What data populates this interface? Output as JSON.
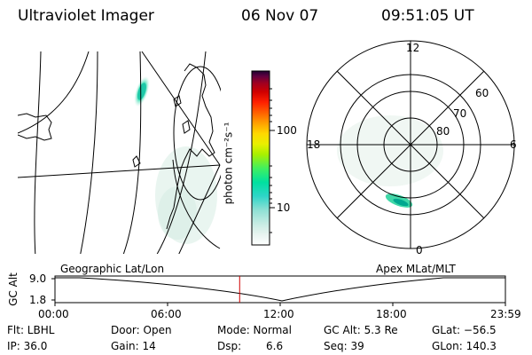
{
  "header": {
    "instrument": "Ultraviolet Imager",
    "date": "06 Nov 07",
    "time": "09:51:05 UT"
  },
  "colorbar": {
    "label": "photon cm⁻²s⁻¹",
    "ticks": [
      "100",
      "10"
    ],
    "colors": [
      "#ffffff",
      "#e8f4f0",
      "#c8ece4",
      "#8fe0d4",
      "#2fd6c8",
      "#00e0a0",
      "#40f060",
      "#a8f000",
      "#e8f000",
      "#ffd800",
      "#ffa000",
      "#ff6000",
      "#ff2000",
      "#d00000",
      "#a00020",
      "#600040",
      "#200030"
    ]
  },
  "polar_plot": {
    "mlt_labels": [
      "12",
      "18",
      "6",
      "0"
    ],
    "lat_labels": [
      "60",
      "70",
      "80"
    ]
  },
  "timeline": {
    "left_label": "Geographic Lat/Lon",
    "right_label": "Apex MLat/MLT",
    "axis_label": "GC Alt",
    "y_ticks": [
      "9.0",
      "1.8"
    ],
    "x_ticks": [
      "00:00",
      "06:00",
      "12:00",
      "18:00",
      "23:59"
    ],
    "current_time_fraction": 0.41,
    "marker_color": "#d00000"
  },
  "info": {
    "flt": "Flt: LBHL",
    "ip": "IP: 36.0",
    "door": "Door: Open",
    "gain": "Gain: 14",
    "mode": "Mode: Normal",
    "dsp_label": "Dsp:",
    "dsp_value": "6.6",
    "gc_alt": "GC Alt: 5.3 Re",
    "seq": "Seq: 39",
    "glat": "GLat: −56.5",
    "glon": "GLon: 140.3"
  }
}
